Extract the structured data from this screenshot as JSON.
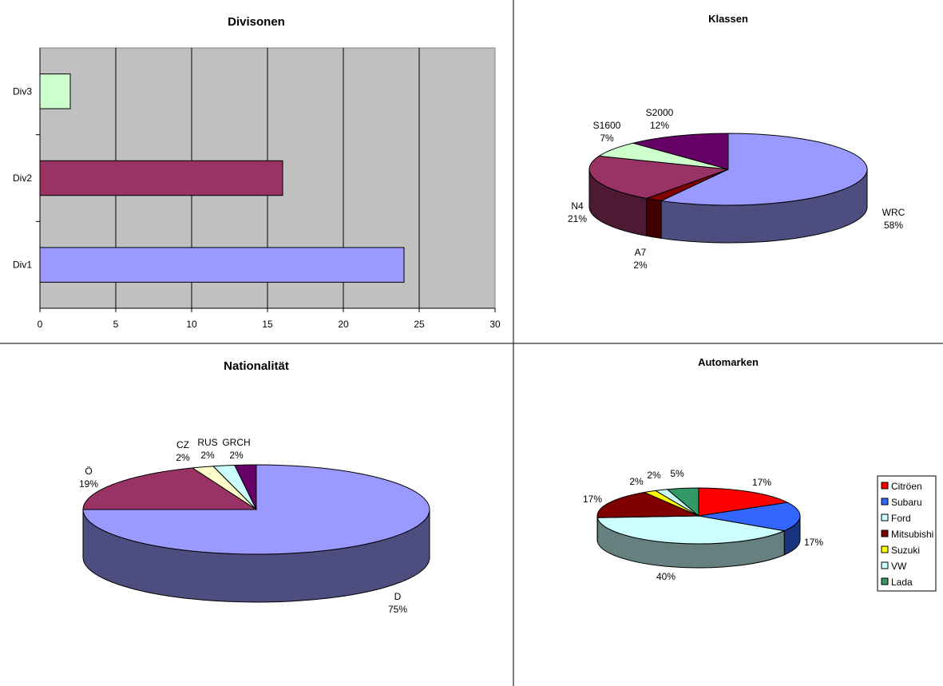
{
  "chart_data": [
    {
      "type": "bar",
      "orientation": "horizontal",
      "title": "Divisonen",
      "categories": [
        "Div1",
        "Div2",
        "Div3"
      ],
      "values": [
        24,
        16,
        2
      ],
      "colors": [
        "#9999ff",
        "#993366",
        "#ccffcc"
      ],
      "xlim": [
        0,
        30
      ],
      "xticks": [
        "0",
        "5",
        "10",
        "15",
        "20",
        "25",
        "30"
      ],
      "grid": true,
      "plot_background": "#c0c0c0"
    },
    {
      "type": "pie",
      "style": "3d",
      "title": "Klassen",
      "slices": [
        {
          "label": "WRC",
          "value": 58,
          "pct": "58%",
          "color": "#9999ff"
        },
        {
          "label": "A7",
          "value": 2,
          "pct": "2%",
          "color": "#800000"
        },
        {
          "label": "N4",
          "value": 21,
          "pct": "21%",
          "color": "#993366"
        },
        {
          "label": "S1600",
          "value": 7,
          "pct": "7%",
          "color": "#ccffcc"
        },
        {
          "label": "S2000",
          "value": 12,
          "pct": "12%",
          "color": "#660066"
        }
      ]
    },
    {
      "type": "pie",
      "style": "3d",
      "title": "Nationalität",
      "slices": [
        {
          "label": "D",
          "value": 75,
          "pct": "75%",
          "color": "#9999ff"
        },
        {
          "label": "Ö",
          "value": 19,
          "pct": "19%",
          "color": "#993366"
        },
        {
          "label": "CZ",
          "value": 2,
          "pct": "2%",
          "color": "#ffffcc"
        },
        {
          "label": "RUS",
          "value": 2,
          "pct": "2%",
          "color": "#ccffff"
        },
        {
          "label": "GRCH",
          "value": 2,
          "pct": "2%",
          "color": "#660066"
        }
      ]
    },
    {
      "type": "pie",
      "style": "3d",
      "title": "Automarken",
      "legend": "right",
      "slices": [
        {
          "label": "Citröen",
          "value": 17,
          "pct": "17%",
          "color": "#ff0000"
        },
        {
          "label": "Subaru",
          "value": 17,
          "pct": "17%",
          "color": "#3366ff"
        },
        {
          "label": "Ford",
          "value": 40,
          "pct": "40%",
          "color": "#ccffff"
        },
        {
          "label": "Mitsubishi",
          "value": 17,
          "pct": "17%",
          "color": "#800000"
        },
        {
          "label": "Suzuki",
          "value": 2,
          "pct": "2%",
          "color": "#ffff00"
        },
        {
          "label": "VW",
          "value": 2,
          "pct": "2%",
          "color": "#ccffff"
        },
        {
          "label": "Lada",
          "value": 5,
          "pct": "5%",
          "color": "#339966"
        }
      ]
    }
  ]
}
